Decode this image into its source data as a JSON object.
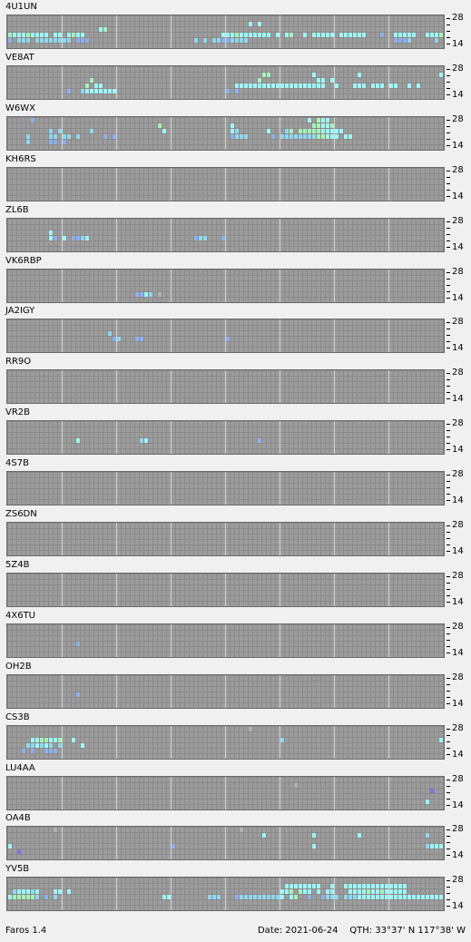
{
  "app": {
    "name": "Faros 1.4"
  },
  "status": {
    "date_text": "Date: 2021-06-24",
    "qth_text": "QTH: 33°37' N  117°38' W"
  },
  "scale": {
    "top_label": "28",
    "bottom_label": "14"
  },
  "colors": {
    "grid_bg": "#8a8a8a",
    "cell_bg": "#9c9c9c",
    "level_1": "#8fb0f0",
    "level_2": "#8fd8f0",
    "level_3": "#9ef6f6",
    "level_4": "#a8f2b8",
    "weak_purple": "#7878e8",
    "gray_mark": "#b2b2b2"
  },
  "beacons": [
    {
      "name": "4U1UN"
    },
    {
      "name": "VE8AT"
    },
    {
      "name": "W6WX"
    },
    {
      "name": "KH6RS"
    },
    {
      "name": "ZL6B"
    },
    {
      "name": "VK6RBP"
    },
    {
      "name": "JA2IGY"
    },
    {
      "name": "RR9O"
    },
    {
      "name": "VR2B"
    },
    {
      "name": "4S7B"
    },
    {
      "name": "ZS6DN"
    },
    {
      "name": "5Z4B"
    },
    {
      "name": "4X6TU"
    },
    {
      "name": "OH2B"
    },
    {
      "name": "CS3B"
    },
    {
      "name": "LU4AA"
    },
    {
      "name": "OA4B"
    },
    {
      "name": "YV5B"
    }
  ]
}
